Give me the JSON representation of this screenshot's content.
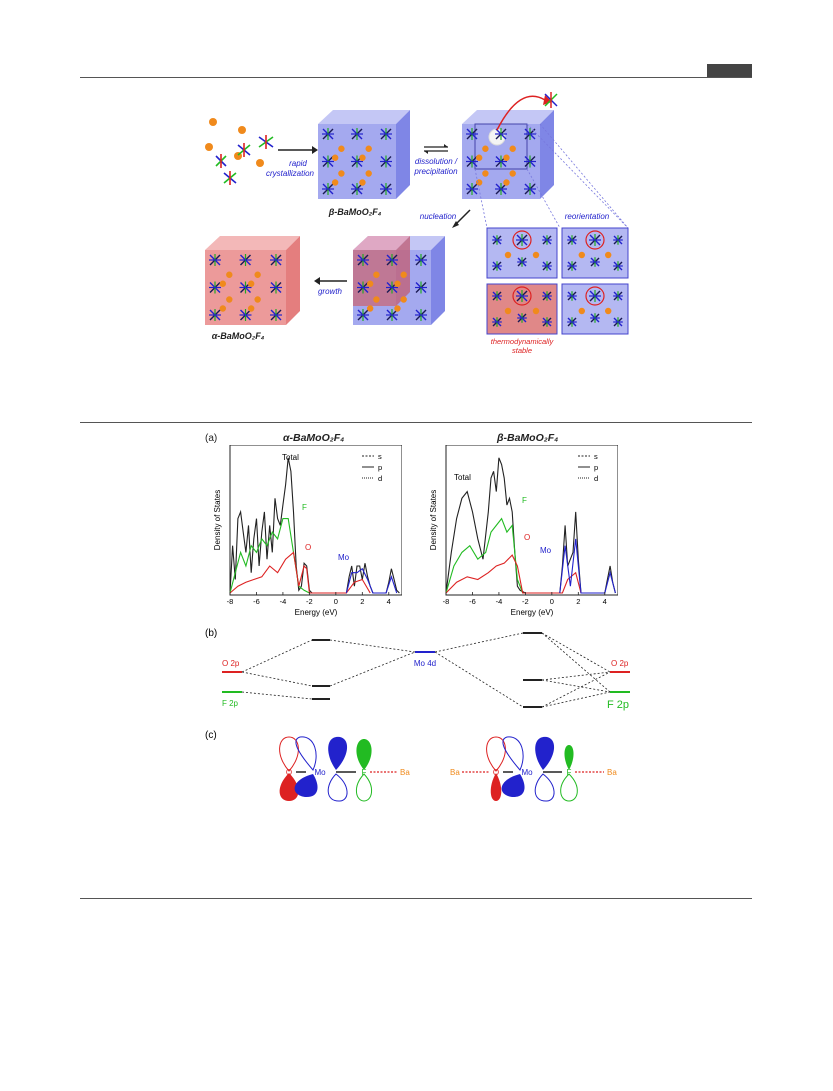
{
  "scheme": {
    "rapid_l1": "rapid",
    "rapid_l2": "crystallization",
    "beta_label": "β-BaMoO₂F₄",
    "dissolution_l1": "dissolution /",
    "dissolution_l2": "precipitation",
    "nucleation": "nucleation",
    "reorientation": "reorientation",
    "growth": "growth",
    "alpha_label": "α-BaMoO₂F₄",
    "stable_l1": "thermodynamically",
    "stable_l2": "stable"
  },
  "panel_a": {
    "tag": "(a)",
    "left_title": "α-BaMoO₂F₄",
    "right_title": "β-BaMoO₂F₄",
    "ylabel": "Density of States",
    "xlabel": "Energy (eV)",
    "xticks": [
      "-8",
      "-6",
      "-4",
      "-2",
      "0",
      "2",
      "4"
    ],
    "legend": [
      "s",
      "p",
      "d"
    ],
    "total": "Total",
    "F": "F",
    "O": "O",
    "Mo": "Mo"
  },
  "chart_data": [
    {
      "type": "line",
      "title": "α-BaMoO₂F₄",
      "xlabel": "Energy (eV)",
      "ylabel": "Density of States",
      "xlim": [
        -8,
        5
      ],
      "legend": [
        "s",
        "p",
        "d"
      ],
      "legend_position": "top-right",
      "series": [
        {
          "name": "Total",
          "color": "#222222",
          "x": [
            -8,
            -7.8,
            -7.6,
            -7.4,
            -7.2,
            -7.0,
            -6.8,
            -6.6,
            -6.4,
            -6.2,
            -6.0,
            -5.8,
            -5.6,
            -5.4,
            -5.2,
            -5.0,
            -4.8,
            -4.6,
            -4.4,
            -4.2,
            -4.0,
            -3.8,
            -3.6,
            -3.4,
            -3.2,
            -3.0,
            -2.8,
            -2.6,
            -2.4,
            -2.2,
            -2.0,
            -1.8,
            0.8,
            1.0,
            1.2,
            1.4,
            1.6,
            1.8,
            2.0,
            2.2,
            2.4,
            2.6,
            2.8,
            3.8,
            4.0,
            4.2,
            4.4,
            4.6,
            4.8
          ],
          "y": [
            0,
            0.35,
            0.1,
            0.55,
            0.6,
            0.45,
            0.3,
            0.5,
            0.15,
            0.4,
            0.55,
            0.2,
            0.45,
            0.6,
            0.25,
            0.5,
            0.3,
            0.7,
            0.55,
            0.5,
            0.65,
            0.8,
            1.0,
            0.9,
            0.6,
            0.2,
            0.02,
            0.05,
            0.22,
            0.2,
            0.02,
            0,
            0,
            0.12,
            0.2,
            0.05,
            0.2,
            0.2,
            0.1,
            0.22,
            0.12,
            0.05,
            0,
            0,
            0.08,
            0.18,
            0.1,
            0.02,
            0
          ]
        },
        {
          "name": "F",
          "color": "#22bb22",
          "x": [
            -8,
            -7.6,
            -7.2,
            -6.8,
            -6.4,
            -6.0,
            -5.6,
            -5.2,
            -4.8,
            -4.4,
            -4.0,
            -3.6,
            -3.2,
            -2.8,
            -2.4,
            -2.0
          ],
          "y": [
            0,
            0.15,
            0.3,
            0.2,
            0.35,
            0.3,
            0.4,
            0.35,
            0.45,
            0.4,
            0.55,
            0.55,
            0.3,
            0.05,
            0.02,
            0
          ]
        },
        {
          "name": "O",
          "color": "#dd2222",
          "x": [
            -8,
            -7.4,
            -6.8,
            -6.2,
            -5.6,
            -5.0,
            -4.4,
            -3.8,
            -3.2,
            -2.8,
            -2.4,
            -2.2,
            -2.0,
            0.8,
            1.4,
            2.0,
            2.6
          ],
          "y": [
            0,
            0.05,
            0.08,
            0.1,
            0.12,
            0.2,
            0.15,
            0.25,
            0.3,
            0.05,
            0.2,
            0.18,
            0,
            0,
            0.08,
            0.1,
            0
          ]
        },
        {
          "name": "Mo",
          "color": "#2222cc",
          "x": [
            0.8,
            1.2,
            1.6,
            2.0,
            2.4,
            2.8,
            3.8,
            4.2,
            4.6
          ],
          "y": [
            0,
            0.15,
            0.15,
            0.18,
            0.1,
            0,
            0,
            0.12,
            0
          ]
        }
      ]
    },
    {
      "type": "line",
      "title": "β-BaMoO₂F₄",
      "xlabel": "Energy (eV)",
      "ylabel": "Density of States",
      "xlim": [
        -8,
        5
      ],
      "legend": [
        "s",
        "p",
        "d"
      ],
      "legend_position": "top-right",
      "series": [
        {
          "name": "Total",
          "color": "#222222",
          "x": [
            -8,
            -7.6,
            -7.2,
            -6.8,
            -6.4,
            -6.0,
            -5.6,
            -5.2,
            -4.8,
            -4.6,
            -4.4,
            -4.2,
            -4.0,
            -3.8,
            -3.6,
            -3.4,
            -3.2,
            -3.0,
            -2.8,
            -2.6,
            -2.4,
            -2.2,
            -2.0,
            0.6,
            0.8,
            1.0,
            1.2,
            1.6,
            1.8,
            2.0,
            2.2,
            4.0,
            4.2,
            4.4,
            4.6,
            4.8
          ],
          "y": [
            0,
            0.3,
            0.55,
            0.7,
            0.75,
            0.6,
            0.4,
            0.25,
            0.6,
            0.85,
            0.9,
            0.75,
            1.0,
            0.95,
            0.85,
            0.65,
            0.7,
            0.6,
            0.3,
            0.05,
            0.02,
            0.01,
            0,
            0,
            0.2,
            0.5,
            0.2,
            0.3,
            0.6,
            0.25,
            0,
            0,
            0.1,
            0.2,
            0.08,
            0
          ]
        },
        {
          "name": "F",
          "color": "#22bb22",
          "x": [
            -8,
            -7.4,
            -6.8,
            -6.2,
            -5.6,
            -5.0,
            -4.6,
            -4.2,
            -3.8,
            -3.4,
            -3.0,
            -2.6,
            -2.2
          ],
          "y": [
            0,
            0.2,
            0.3,
            0.35,
            0.25,
            0.3,
            0.45,
            0.5,
            0.55,
            0.45,
            0.5,
            0.1,
            0
          ]
        },
        {
          "name": "O",
          "color": "#dd2222",
          "x": [
            -8,
            -7.2,
            -6.4,
            -5.6,
            -4.8,
            -4.2,
            -3.6,
            -3.0,
            -2.6,
            -2.2,
            0.8,
            1.2,
            1.8,
            2.2
          ],
          "y": [
            0,
            0.08,
            0.12,
            0.1,
            0.15,
            0.2,
            0.22,
            0.28,
            0.2,
            0,
            0,
            0.1,
            0.15,
            0
          ]
        },
        {
          "name": "Mo",
          "color": "#2222cc",
          "x": [
            0.6,
            1.0,
            1.4,
            1.8,
            2.2,
            4.0,
            4.4,
            4.8
          ],
          "y": [
            0,
            0.35,
            0.05,
            0.4,
            0,
            0,
            0.15,
            0
          ]
        }
      ]
    }
  ],
  "panel_b": {
    "tag": "(b)",
    "o2p_left": "O 2p",
    "f2p_left": "F 2p",
    "mo4d": "Mo 4d",
    "o2p_right": "O 2p",
    "f2p_right": "F 2p"
  },
  "panel_c": {
    "tag": "(c)",
    "O": "O",
    "Mo": "Mo",
    "F": "F",
    "Ba": "Ba"
  },
  "colors": {
    "red": "#dd2222",
    "green": "#22bb22",
    "blue": "#2222cc",
    "orange": "#f08a1c",
    "beta_box": "#9aa0ec",
    "alpha_box": "#ee8c8c"
  }
}
